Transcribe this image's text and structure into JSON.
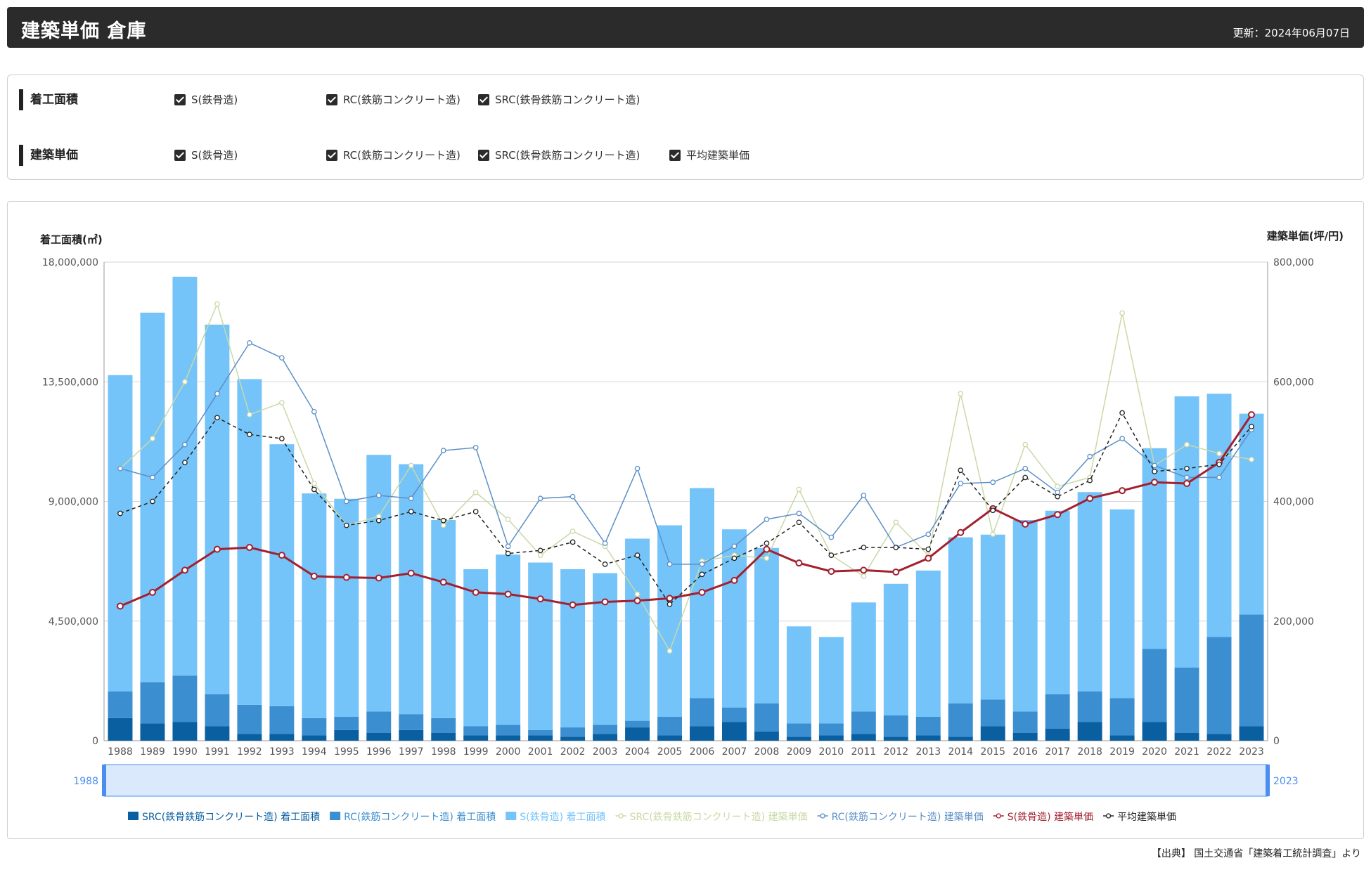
{
  "header": {
    "title": "建築単価 倉庫",
    "updated": "更新：2024年06月07日"
  },
  "filters": {
    "area": {
      "label": "着工面積",
      "options": [
        {
          "label": "S(鉄骨造)",
          "checked": true
        },
        {
          "label": "RC(鉄筋コンクリート造)",
          "checked": true
        },
        {
          "label": "SRC(鉄骨鉄筋コンクリート造)",
          "checked": true
        }
      ]
    },
    "price": {
      "label": "建築単価",
      "options": [
        {
          "label": "S(鉄骨造)",
          "checked": true
        },
        {
          "label": "RC(鉄筋コンクリート造)",
          "checked": true
        },
        {
          "label": "SRC(鉄骨鉄筋コンクリート造)",
          "checked": true
        },
        {
          "label": "平均建築単価",
          "checked": true
        }
      ]
    }
  },
  "chart_data": {
    "type": "bar",
    "stacked": true,
    "grid": true,
    "legend_position": "bottom",
    "ylabel": "着工面積(㎡)",
    "y2label": "建築単価(坪/円)",
    "ylim": [
      0,
      18000000
    ],
    "y2lim": [
      0,
      800000
    ],
    "yticks": [
      "0",
      "4,500,000",
      "9,000,000",
      "13,500,000",
      "18,000,000"
    ],
    "y2ticks": [
      "0",
      "200,000",
      "400,000",
      "600,000",
      "800,000"
    ],
    "x": [
      "1988",
      "1989",
      "1990",
      "1991",
      "1992",
      "1993",
      "1994",
      "1995",
      "1996",
      "1997",
      "1998",
      "1999",
      "2000",
      "2001",
      "2002",
      "2003",
      "2004",
      "2005",
      "2006",
      "2007",
      "2008",
      "2009",
      "2010",
      "2011",
      "2012",
      "2013",
      "2014",
      "2015",
      "2016",
      "2017",
      "2018",
      "2019",
      "2020",
      "2021",
      "2022",
      "2023"
    ],
    "slider": {
      "start": "1988",
      "end": "2023"
    },
    "bar_series": [
      {
        "name": "SRC(鉄骨鉄筋コンクリート造) 着工面積",
        "color": "#0a5fa0",
        "values": [
          850000,
          650000,
          700000,
          550000,
          250000,
          250000,
          200000,
          400000,
          300000,
          400000,
          300000,
          200000,
          200000,
          200000,
          150000,
          250000,
          500000,
          200000,
          550000,
          700000,
          350000,
          150000,
          200000,
          250000,
          150000,
          200000,
          150000,
          550000,
          300000,
          450000,
          700000,
          200000,
          700000,
          300000,
          250000,
          550000
        ]
      },
      {
        "name": "RC(鉄筋コンクリート造) 着工面積",
        "color": "#3b8fd0",
        "values": [
          1000000,
          1550000,
          1750000,
          1200000,
          1100000,
          1050000,
          650000,
          500000,
          800000,
          600000,
          550000,
          350000,
          400000,
          200000,
          350000,
          350000,
          250000,
          700000,
          1050000,
          550000,
          1050000,
          500000,
          450000,
          850000,
          800000,
          700000,
          1250000,
          1000000,
          800000,
          1300000,
          1150000,
          1400000,
          2750000,
          2450000,
          3650000,
          4200000
        ]
      },
      {
        "name": "S(鉄骨造) 着工面積",
        "color": "#74c3f9",
        "values": [
          11900000,
          13900000,
          15000000,
          13900000,
          12250000,
          9850000,
          8450000,
          8200000,
          9650000,
          9400000,
          7450000,
          5900000,
          6400000,
          6300000,
          5950000,
          5700000,
          6850000,
          7200000,
          7900000,
          6700000,
          5850000,
          3650000,
          3250000,
          4100000,
          4950000,
          5500000,
          6250000,
          6200000,
          7200000,
          6900000,
          7500000,
          7100000,
          7550000,
          10200000,
          9150000,
          7550000
        ]
      }
    ],
    "line_series": [
      {
        "name": "SRC(鉄骨鉄筋コンクリート造) 建築単価",
        "color": "#c9d9a6",
        "values": [
          455000,
          505000,
          600000,
          730000,
          545000,
          565000,
          430000,
          360000,
          375000,
          460000,
          360000,
          415000,
          370000,
          310000,
          350000,
          325000,
          245000,
          150000,
          300000,
          310000,
          305000,
          420000,
          310000,
          275000,
          365000,
          310000,
          580000,
          345000,
          495000,
          425000,
          440000,
          715000,
          460000,
          495000,
          480000,
          470000
        ]
      },
      {
        "name": "RC(鉄筋コンクリート造) 建築単価",
        "color": "#5b8fc7",
        "values": [
          455000,
          440000,
          495000,
          580000,
          665000,
          640000,
          550000,
          400000,
          410000,
          405000,
          485000,
          490000,
          325000,
          405000,
          408000,
          330000,
          455000,
          295000,
          295000,
          325000,
          370000,
          380000,
          340000,
          410000,
          323000,
          345000,
          430000,
          432000,
          455000,
          415000,
          475000,
          505000,
          460000,
          440000,
          440000,
          520000
        ]
      },
      {
        "name": "S(鉄骨造) 建築単価",
        "color": "#a3202f",
        "values": [
          225000,
          248000,
          285000,
          320000,
          323000,
          310000,
          275000,
          273000,
          272000,
          280000,
          265000,
          248000,
          245000,
          237000,
          227000,
          232000,
          234000,
          238000,
          248000,
          268000,
          320000,
          297000,
          283000,
          285000,
          282000,
          305000,
          348000,
          388000,
          362000,
          378000,
          405000,
          418000,
          432000,
          430000,
          465000,
          545000
        ]
      },
      {
        "name": "平均建築単価",
        "color": "#222222",
        "dashed": true,
        "values": [
          380000,
          400000,
          465000,
          540000,
          512000,
          505000,
          420000,
          360000,
          368000,
          383000,
          368000,
          383000,
          313000,
          318000,
          332000,
          295000,
          310000,
          228000,
          278000,
          305000,
          330000,
          365000,
          310000,
          323000,
          323000,
          320000,
          452000,
          385000,
          440000,
          408000,
          435000,
          548000,
          450000,
          455000,
          462000,
          525000
        ]
      }
    ],
    "legend": [
      {
        "name": "SRC(鉄骨鉄筋コンクリート造) 着工面積",
        "color": "#0a5fa0",
        "kind": "bar"
      },
      {
        "name": "RC(鉄筋コンクリート造) 着工面積",
        "color": "#3b8fd0",
        "kind": "bar"
      },
      {
        "name": "S(鉄骨造) 着工面積",
        "color": "#74c3f9",
        "kind": "bar"
      },
      {
        "name": "SRC(鉄骨鉄筋コンクリート造) 建築単価",
        "color": "#c9d9a6",
        "kind": "line"
      },
      {
        "name": "RC(鉄筋コンクリート造) 建築単価",
        "color": "#5b8fc7",
        "kind": "line"
      },
      {
        "name": "S(鉄骨造) 建築単価",
        "color": "#a3202f",
        "kind": "line"
      },
      {
        "name": "平均建築単価",
        "color": "#222222",
        "kind": "line"
      }
    ]
  },
  "source": "【出典】 国土交通省「建築着工統計調査」より"
}
